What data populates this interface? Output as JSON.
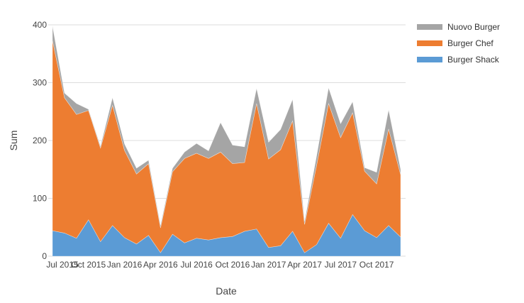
{
  "chart_data": {
    "type": "area",
    "stacked": true,
    "title": "",
    "xlabel": "Date",
    "ylabel": "Sum",
    "ylim": [
      0,
      400
    ],
    "yticks": [
      0,
      100,
      200,
      300,
      400
    ],
    "grid": true,
    "legend_position": "right",
    "x": [
      "Jul 2015",
      "Aug 2015",
      "Sep 2015",
      "Oct 2015",
      "Nov 2015",
      "Dec 2015",
      "Jan 2016",
      "Feb 2016",
      "Mar 2016",
      "Apr 2016",
      "May 2016",
      "Jun 2016",
      "Jul 2016",
      "Aug 2016",
      "Sep 2016",
      "Oct 2016",
      "Nov 2016",
      "Dec 2016",
      "Jan 2017",
      "Feb 2017",
      "Mar 2017",
      "Apr 2017",
      "May 2017",
      "Jun 2017",
      "Jul 2017",
      "Aug 2017",
      "Sep 2017",
      "Oct 2017",
      "Nov 2017",
      "Dec 2017"
    ],
    "xtick_labels": [
      "Jul 2015",
      "Oct 2015",
      "Jan 2016",
      "Apr 2016",
      "Jul 2016",
      "Oct 2016",
      "Jan 2017",
      "Apr 2017",
      "Jul 2017",
      "Oct 2017"
    ],
    "series": [
      {
        "name": "Burger Shack",
        "color": "#5b9bd5",
        "values": [
          44,
          40,
          31,
          63,
          25,
          53,
          32,
          21,
          36,
          6,
          38,
          23,
          31,
          28,
          32,
          34,
          43,
          47,
          15,
          18,
          43,
          6,
          20,
          57,
          31,
          72,
          44,
          32,
          53,
          33
        ]
      },
      {
        "name": "Burger Chef",
        "color": "#ed7d31",
        "values": [
          329,
          234,
          214,
          189,
          162,
          208,
          151,
          121,
          124,
          43,
          108,
          146,
          147,
          141,
          148,
          126,
          119,
          217,
          153,
          166,
          191,
          49,
          137,
          207,
          174,
          176,
          103,
          93,
          167,
          108
        ]
      },
      {
        "name": "Nuovo Burger",
        "color": "#a5a5a5",
        "values": [
          25,
          8,
          19,
          2,
          3,
          13,
          11,
          10,
          6,
          4,
          6,
          11,
          17,
          13,
          51,
          32,
          27,
          26,
          29,
          35,
          37,
          5,
          16,
          27,
          24,
          19,
          6,
          20,
          33,
          9
        ]
      }
    ]
  },
  "legend": [
    {
      "label": "Nuovo Burger",
      "color": "#a5a5a5"
    },
    {
      "label": "Burger Chef",
      "color": "#ed7d31"
    },
    {
      "label": "Burger Shack",
      "color": "#5b9bd5"
    }
  ]
}
